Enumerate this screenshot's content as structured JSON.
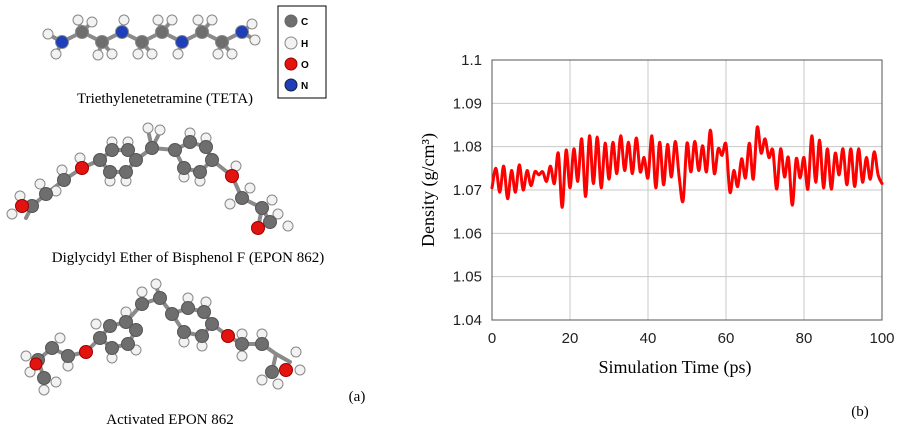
{
  "colors": {
    "carbon": "#6e6e6e",
    "hydrogen": "#f2f2f2",
    "oxygen": "#e3140f",
    "nitrogen": "#1f3fb8",
    "bond": "#8a8a8a",
    "series": "#ff0000",
    "grid": "#c8c8c8"
  },
  "molecules": {
    "legend": [
      {
        "symbol": "C",
        "color": "#6e6e6e"
      },
      {
        "symbol": "H",
        "color": "#f2f2f2"
      },
      {
        "symbol": "O",
        "color": "#e3140f"
      },
      {
        "symbol": "N",
        "color": "#1f3fb8"
      }
    ],
    "captions": {
      "teta": "Triethylenetetramine (TETA)",
      "epon": "Diglycidyl Ether of Bisphenol F (EPON 862)",
      "activated": "Activated EPON 862"
    },
    "panel_label": "(a)"
  },
  "panel_b_label": "(b)",
  "chart_data": {
    "type": "line",
    "xlabel": "Simulation Time (ps)",
    "ylabel": "Density (g/cm³)",
    "xlim": [
      0,
      100
    ],
    "ylim": [
      1.04,
      1.1
    ],
    "xticks": [
      "0",
      "20",
      "40",
      "60",
      "80",
      "100"
    ],
    "yticks": [
      "1.04",
      "1.05",
      "1.06",
      "1.07",
      "1.08",
      "1.09",
      "1.1"
    ],
    "grid": true,
    "series": [
      {
        "color": "#ff0000",
        "x": [
          0,
          1,
          2,
          3,
          4,
          5,
          6,
          7,
          8,
          9,
          10,
          11,
          12,
          13,
          14,
          15,
          16,
          17,
          18,
          19,
          20,
          21,
          22,
          23,
          24,
          25,
          26,
          27,
          28,
          29,
          30,
          31,
          32,
          33,
          34,
          35,
          36,
          37,
          38,
          39,
          40,
          41,
          42,
          43,
          44,
          45,
          46,
          47,
          48,
          49,
          50,
          51,
          52,
          53,
          54,
          55,
          56,
          57,
          58,
          59,
          60,
          61,
          62,
          63,
          64,
          65,
          66,
          67,
          68,
          69,
          70,
          71,
          72,
          73,
          74,
          75,
          76,
          77,
          78,
          79,
          80,
          81,
          82,
          83,
          84,
          85,
          86,
          87,
          88,
          89,
          90,
          91,
          92,
          93,
          94,
          95,
          96,
          97,
          98,
          99,
          100
        ],
        "y": [
          1.0705,
          1.075,
          1.0695,
          1.0755,
          1.068,
          1.0745,
          1.0695,
          1.0758,
          1.07,
          1.0745,
          1.071,
          1.0742,
          1.0735,
          1.0742,
          1.072,
          1.0755,
          1.0715,
          1.0785,
          1.066,
          1.0792,
          1.0705,
          1.0795,
          1.072,
          1.0818,
          1.0685,
          1.0825,
          1.0715,
          1.0822,
          1.0705,
          1.0808,
          1.0725,
          1.081,
          1.0738,
          1.0825,
          1.0745,
          1.081,
          1.0738,
          1.082,
          1.0742,
          1.0775,
          1.0728,
          1.0825,
          1.0705,
          1.081,
          1.0712,
          1.0805,
          1.073,
          1.0812,
          1.073,
          1.0675,
          1.0808,
          1.0742,
          1.0812,
          1.0745,
          1.0802,
          1.0742,
          1.0838,
          1.0738,
          1.0795,
          1.078,
          1.0805,
          1.0695,
          1.0745,
          1.0708,
          1.0772,
          1.0728,
          1.0808,
          1.0725,
          1.0845,
          1.0785,
          1.0818,
          1.0775,
          1.0792,
          1.0702,
          1.0795,
          1.073,
          1.0775,
          1.0665,
          1.0772,
          1.0728,
          1.0775,
          1.0702,
          1.0825,
          1.0718,
          1.0815,
          1.0705,
          1.0795,
          1.0702,
          1.0785,
          1.0735,
          1.0795,
          1.0712,
          1.0795,
          1.0708,
          1.0795,
          1.0718,
          1.0775,
          1.0725,
          1.0788,
          1.0735,
          1.0715
        ]
      }
    ]
  }
}
